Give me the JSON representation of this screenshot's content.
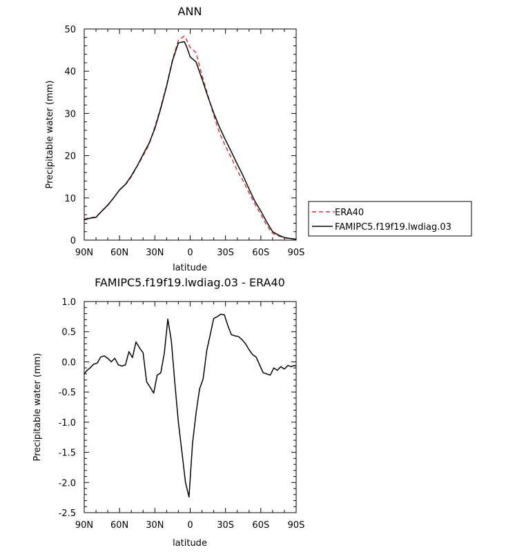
{
  "chart_data": [
    {
      "type": "line",
      "title": "ANN",
      "xlabel": "latitude",
      "ylabel": "Precipitable water (mm)",
      "xlim": [
        90,
        -90
      ],
      "ylim": [
        0,
        50
      ],
      "x_tick_values": [
        90,
        60,
        30,
        0,
        -30,
        -60,
        -90
      ],
      "x_tick_labels": [
        "90N",
        "60N",
        "30N",
        "0",
        "30S",
        "60S",
        "90S"
      ],
      "y_tick_values": [
        0,
        10,
        20,
        30,
        40,
        50
      ],
      "y_tick_labels": [
        "0",
        "10",
        "20",
        "30",
        "40",
        "50"
      ],
      "legend_position": "right",
      "series": [
        {
          "name": "ERA40",
          "color": "#e03030",
          "dash": "dashed",
          "x": [
            90,
            85,
            80,
            75,
            70,
            65,
            60,
            55,
            50,
            45,
            40,
            35,
            30,
            25,
            20,
            15,
            10,
            5,
            3,
            0,
            -5,
            -10,
            -15,
            -20,
            -25,
            -30,
            -35,
            -40,
            -45,
            -50,
            -55,
            -60,
            -65,
            -70,
            -75,
            -80,
            -85,
            -90
          ],
          "values": [
            5.0,
            5.3,
            5.5,
            6.9,
            8.2,
            10.0,
            11.9,
            13.1,
            15.0,
            17.5,
            20.0,
            22.6,
            26.8,
            31.5,
            36.7,
            42.7,
            47.3,
            48.3,
            47.4,
            45.6,
            44.4,
            39.0,
            34.3,
            29.6,
            25.3,
            22.2,
            19.5,
            16.5,
            14.0,
            11.2,
            8.5,
            6.1,
            3.5,
            1.6,
            1.0,
            0.5,
            0.4,
            0.2
          ]
        },
        {
          "name": "FAMIPC5.f19f19.lwdiag.03",
          "color": "#000000",
          "dash": "solid",
          "x": [
            90,
            85,
            80,
            75,
            70,
            65,
            60,
            55,
            50,
            45,
            40,
            35,
            30,
            25,
            20,
            15,
            10,
            5,
            3,
            0,
            -5,
            -10,
            -15,
            -20,
            -25,
            -30,
            -35,
            -40,
            -45,
            -50,
            -55,
            -60,
            -65,
            -70,
            -75,
            -80,
            -85,
            -90
          ],
          "values": [
            4.8,
            5.2,
            5.4,
            6.9,
            8.3,
            10.0,
            11.9,
            13.2,
            15.2,
            17.6,
            20.3,
            22.9,
            26.4,
            31.2,
            36.5,
            42.5,
            46.7,
            47.0,
            45.8,
            43.4,
            42.2,
            38.2,
            34.0,
            30.1,
            26.7,
            23.7,
            20.9,
            18.0,
            15.2,
            12.1,
            9.2,
            6.9,
            4.3,
            2.0,
            1.2,
            0.6,
            0.4,
            0.2
          ]
        }
      ]
    },
    {
      "type": "line",
      "title": "FAMIPC5.f19f19.lwdiag.03 - ERA40",
      "xlabel": "latitude",
      "ylabel": "Precipitable water (mm)",
      "xlim": [
        90,
        -90
      ],
      "ylim": [
        -2.5,
        1.0
      ],
      "x_tick_values": [
        90,
        60,
        30,
        0,
        -30,
        -60,
        -90
      ],
      "x_tick_labels": [
        "90N",
        "60N",
        "30N",
        "0",
        "30S",
        "60S",
        "90S"
      ],
      "y_tick_values": [
        -2.5,
        -2.0,
        -1.5,
        -1.0,
        -0.5,
        0.0,
        0.5,
        1.0
      ],
      "y_tick_labels": [
        "-2.5",
        "-2.0",
        "-1.5",
        "-1.0",
        "-0.5",
        "0.0",
        "0.5",
        "1.0"
      ],
      "series": [
        {
          "color": "#000000",
          "dash": "solid",
          "x": [
            90,
            88,
            85,
            82,
            79,
            76,
            73,
            70,
            67,
            64,
            61,
            58,
            55,
            52,
            49,
            46,
            43,
            40,
            37,
            34,
            31,
            28,
            25,
            22,
            19,
            16,
            13,
            10,
            7,
            4,
            1,
            -2,
            -5,
            -8,
            -11,
            -14,
            -17,
            -20,
            -23,
            -26,
            -29,
            -32,
            -35,
            -38,
            -41,
            -44,
            -47,
            -50,
            -53,
            -56,
            -59,
            -62,
            -65,
            -68,
            -71,
            -74,
            -77,
            -80,
            -83,
            -86,
            -88,
            -90
          ],
          "values": [
            -0.2,
            -0.15,
            -0.1,
            -0.04,
            -0.02,
            0.08,
            0.1,
            0.06,
            0.0,
            0.06,
            -0.05,
            -0.07,
            -0.05,
            0.17,
            0.07,
            0.33,
            0.23,
            0.15,
            -0.33,
            -0.42,
            -0.52,
            -0.22,
            -0.18,
            0.14,
            0.71,
            0.35,
            -0.35,
            -1.0,
            -1.5,
            -2.0,
            -2.24,
            -1.35,
            -0.85,
            -0.45,
            -0.28,
            0.18,
            0.45,
            0.72,
            0.75,
            0.79,
            0.78,
            0.6,
            0.45,
            0.43,
            0.42,
            0.37,
            0.3,
            0.2,
            0.12,
            0.08,
            -0.05,
            -0.18,
            -0.2,
            -0.22,
            -0.1,
            -0.14,
            -0.08,
            -0.12,
            -0.06,
            -0.08,
            -0.06,
            -0.07
          ]
        }
      ]
    }
  ]
}
